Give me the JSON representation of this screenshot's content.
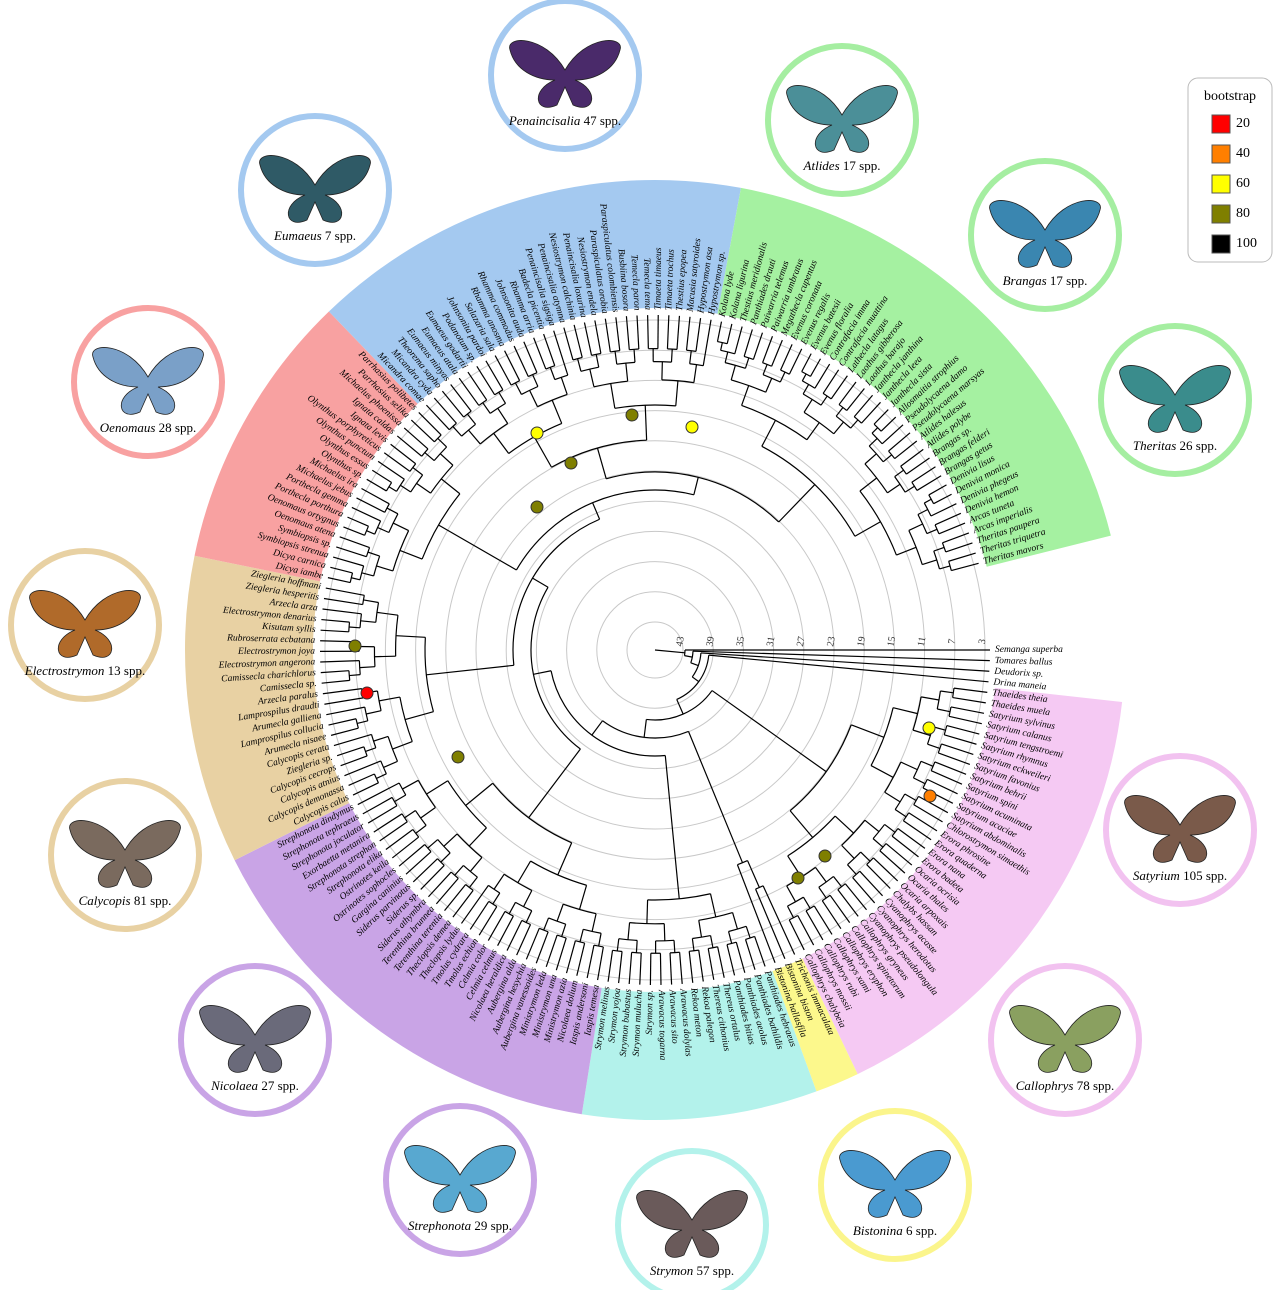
{
  "scale_ticks": [
    3,
    7,
    11,
    15,
    19,
    23,
    27,
    31,
    35,
    39,
    43
  ],
  "outgroups": [
    "Semanga superba",
    "Tomares ballus",
    "Deudorix sp.",
    "Drina maneia"
  ],
  "clades": [
    {
      "color": "#f5c9f3",
      "tips": [
        "Thaeides theia",
        "Thaeides muela",
        "Satyrium sylvinus",
        "Satyrium calanus",
        "Satyrium tengstroemi",
        "Satyrium rhymnus",
        "Satyrium eckweileri",
        "Satyrium favonius",
        "Satyrium behrii",
        "Satyrium spini",
        "Satyrium acuminata",
        "Satyrium acaciae",
        "Satyrium abdominalis",
        "Chlorostrymon simaethis",
        "Erora phrosine",
        "Erora quaderna",
        "Erora nana",
        "Erora badeta",
        "Ocaria ocrisia",
        "Ocaria thales",
        "Ocaria arpoxais",
        "Chalybs hassan",
        "Cyanophrys acaste",
        "Cyanophrys herodotus",
        "Cyanophrys pseudolongula",
        "Callophrys gryneus",
        "Callophrys spinetorum",
        "Callophrys eryphon",
        "Callophrys xami",
        "Callophrys rubi",
        "Callophrys mossii",
        "Callophrys chalybeia"
      ]
    },
    {
      "color": "#fcf88c",
      "tips": [
        "Trichonis immaculata",
        "Bistonina biston",
        "Bistonina hallasfila"
      ]
    },
    {
      "color": "#b3f2eb",
      "tips": [
        "Panthiades hebraeus",
        "Panthiades bathildis",
        "Panthiades aeolus",
        "Panthiades bitias",
        "Thereus ortalus",
        "Thereus cithonius",
        "Rekoa palegon",
        "Rekoa meton",
        "Arawacus dolylas",
        "Arawacus sito",
        "Arawacus togarna",
        "Strymon sp.",
        "Strymon mulucha",
        "Strymon bubastus",
        "Strymon yojoa",
        "Strymon melinus"
      ]
    },
    {
      "color": "#c9a4e6",
      "tips": [
        "Iaspis temesa",
        "Iaspis andersoni",
        "Nicolaea dolium",
        "Ministrymon azia",
        "Ministrymon una",
        "Ministrymon leda",
        "Aubergina vanessoides",
        "Aubergina hesychia",
        "Aubergina alda",
        "Nicolaea heraldica",
        "Celmia celmus",
        "Celmia color",
        "Tmolus echion",
        "Tmolus cydrara",
        "Theclopsis lydus",
        "Theclopsis demea",
        "Terenthina terentia",
        "Terenthina brunnea",
        "Siderus athymbra",
        "Siderus sp.",
        "Siderus parvinotus",
        "Gargina caninius",
        "Ostrinotes sophocles",
        "Ostrinotes keila",
        "Strephonota elika",
        "Strephonota strephon",
        "Exorbaetta metanira",
        "Strephonota joculator",
        "Strephonota tephraeus",
        "Strephonota dindymus"
      ]
    },
    {
      "color": "#e8d1a3",
      "tips": [
        "Calycopis calus",
        "Calycopis demonassa",
        "Calycopis atnius",
        "Calycopis cecrops",
        "Ziegleria sp.",
        "Calycopis cerata",
        "Arumecla nisaee",
        "Lamprospilus collucia",
        "Arumecla galliena",
        "Lamprospilus draudti",
        "Arzecla paralus",
        "Camissecla sp.",
        "Camissecla charichlorus",
        "Electrostrymon angerona",
        "Electrostrymon joya",
        "Rubroserrata ecbatana",
        "Kisutam syllis",
        "Electrostrymon denarius",
        "Arzecla arza",
        "Ziegleria hesperitis",
        "Ziegleria hoffmani"
      ]
    },
    {
      "color": "#f8a1a1",
      "tips": [
        "Dicya iambe",
        "Dicya carnica",
        "Symbiopsis strenua",
        "Symbiopsis sp.",
        "Oenomaus atena",
        "Oenomaus ortygnus",
        "Porthecla porthura",
        "Porthecla gemma",
        "Michaelus jebus",
        "Michaelus ira",
        "Olynthus sp.",
        "Olynthus essus",
        "Olynthus punctum",
        "Olynthus porphyreticus",
        "Ignata levis",
        "Ignata caldas",
        "Michaelus phoenissa",
        "Parrhasius selika",
        "Parrhasius polibetes"
      ]
    },
    {
      "color": "#a4c9f0",
      "tips": [
        "Micandra comae",
        "Micandra cyda",
        "Theorema sapho",
        "Eumaeus minyas",
        "Eumaeus atala",
        "Eumaeus godartii",
        "Podanotum sp.",
        "Johnsonita pardoi",
        "Salazaria sala",
        "Rhamma anosma",
        "Rhamma commodus",
        "Johnsonita auda",
        "Rhamma arria",
        "Badecla picentia",
        "Penaincisalia sigsiga",
        "Penaincisalia atymna",
        "Nesiostrymon calchinia",
        "Penaincisalia loxurina",
        "Nesiostrymon endela",
        "Paraspiculatus orobia",
        "Paraspiculatus colombiensis",
        "Busbiina bosora",
        "Temecla paron",
        "Temecla tema",
        "Timaeta timaeus",
        "Timaeta trochus",
        "Thestius epopea",
        "Macusia satyroides",
        "Hypostrymon asa",
        "Hypostrymon sp."
      ]
    },
    {
      "color": "#a5f1a1",
      "tips": [
        "Kolana lyde",
        "Kolana ligurina",
        "Thestius meridionalis",
        "Panthiades drauti",
        "Paiwarria telemus",
        "Paiwarria umbratus",
        "Megathecla cupentus",
        "Evenus coronata",
        "Evenus regalis",
        "Evenus batesii",
        "Evenus floralia",
        "Contrafacia imma",
        "Contrafacia muattina",
        "Lathecla latagus",
        "Laothus gibberosa",
        "Laothus barajo",
        "Janthecla janthina",
        "Janthecla leea",
        "Janthecla sista",
        "Allosmaitia strophius",
        "Pseudolycaena damo",
        "Pseudolycaena marsyas",
        "Atlides halesus",
        "Atlides polybe",
        "Brangas sp.",
        "Brangas felderi",
        "Brangas getus",
        "Denivia lisus",
        "Denivia monica",
        "Denivia phegeus",
        "Denivia hemon",
        "Arcas tuneta",
        "Arcas imperialis",
        "Theritas paupera",
        "Theritas triquetra",
        "Theritas mavors"
      ]
    }
  ],
  "galleries": [
    {
      "genus": "Penaincisalia",
      "count": "47 spp.",
      "color": "#a4c9f0"
    },
    {
      "genus": "Atlides",
      "count": "17 spp.",
      "color": "#a5eea1"
    },
    {
      "genus": "Brangas",
      "count": "17 spp.",
      "color": "#a5eea1"
    },
    {
      "genus": "Theritas",
      "count": "26 spp.",
      "color": "#a5eea1"
    },
    {
      "genus": "Satyrium",
      "count": "105 spp.",
      "color": "#f2c2f0"
    },
    {
      "genus": "Callophrys",
      "count": "78 spp.",
      "color": "#f2c2f0"
    },
    {
      "genus": "Bistonina",
      "count": "6 spp.",
      "color": "#fbf58c"
    },
    {
      "genus": "Strymon",
      "count": "57 spp.",
      "color": "#b3f2eb"
    },
    {
      "genus": "Strephonota",
      "count": "29 spp.",
      "color": "#c9a4e6"
    },
    {
      "genus": "Nicolaea",
      "count": "27 spp.",
      "color": "#c9a4e6"
    },
    {
      "genus": "Calycopis",
      "count": "81 spp.",
      "color": "#e8d1a3"
    },
    {
      "genus": "Electrostrymon",
      "count": "13 spp.",
      "color": "#e8d1a3"
    },
    {
      "genus": "Oenomaus",
      "count": "28 spp.",
      "color": "#f8a1a1"
    },
    {
      "genus": "Eumaeus",
      "count": "7 spp.",
      "color": "#a4c9f0"
    }
  ],
  "legend": {
    "title": "bootstrap",
    "entries": [
      {
        "value": 20,
        "color": "#ff0000"
      },
      {
        "value": 40,
        "color": "#ff7f00"
      },
      {
        "value": 60,
        "color": "#ffff00"
      },
      {
        "value": 80,
        "color": "#7f7f00"
      },
      {
        "value": 100,
        "color": "#000000"
      }
    ]
  },
  "support_nodes": [
    60,
    80,
    80,
    80,
    60,
    80,
    20,
    80,
    60,
    40,
    80,
    80
  ]
}
